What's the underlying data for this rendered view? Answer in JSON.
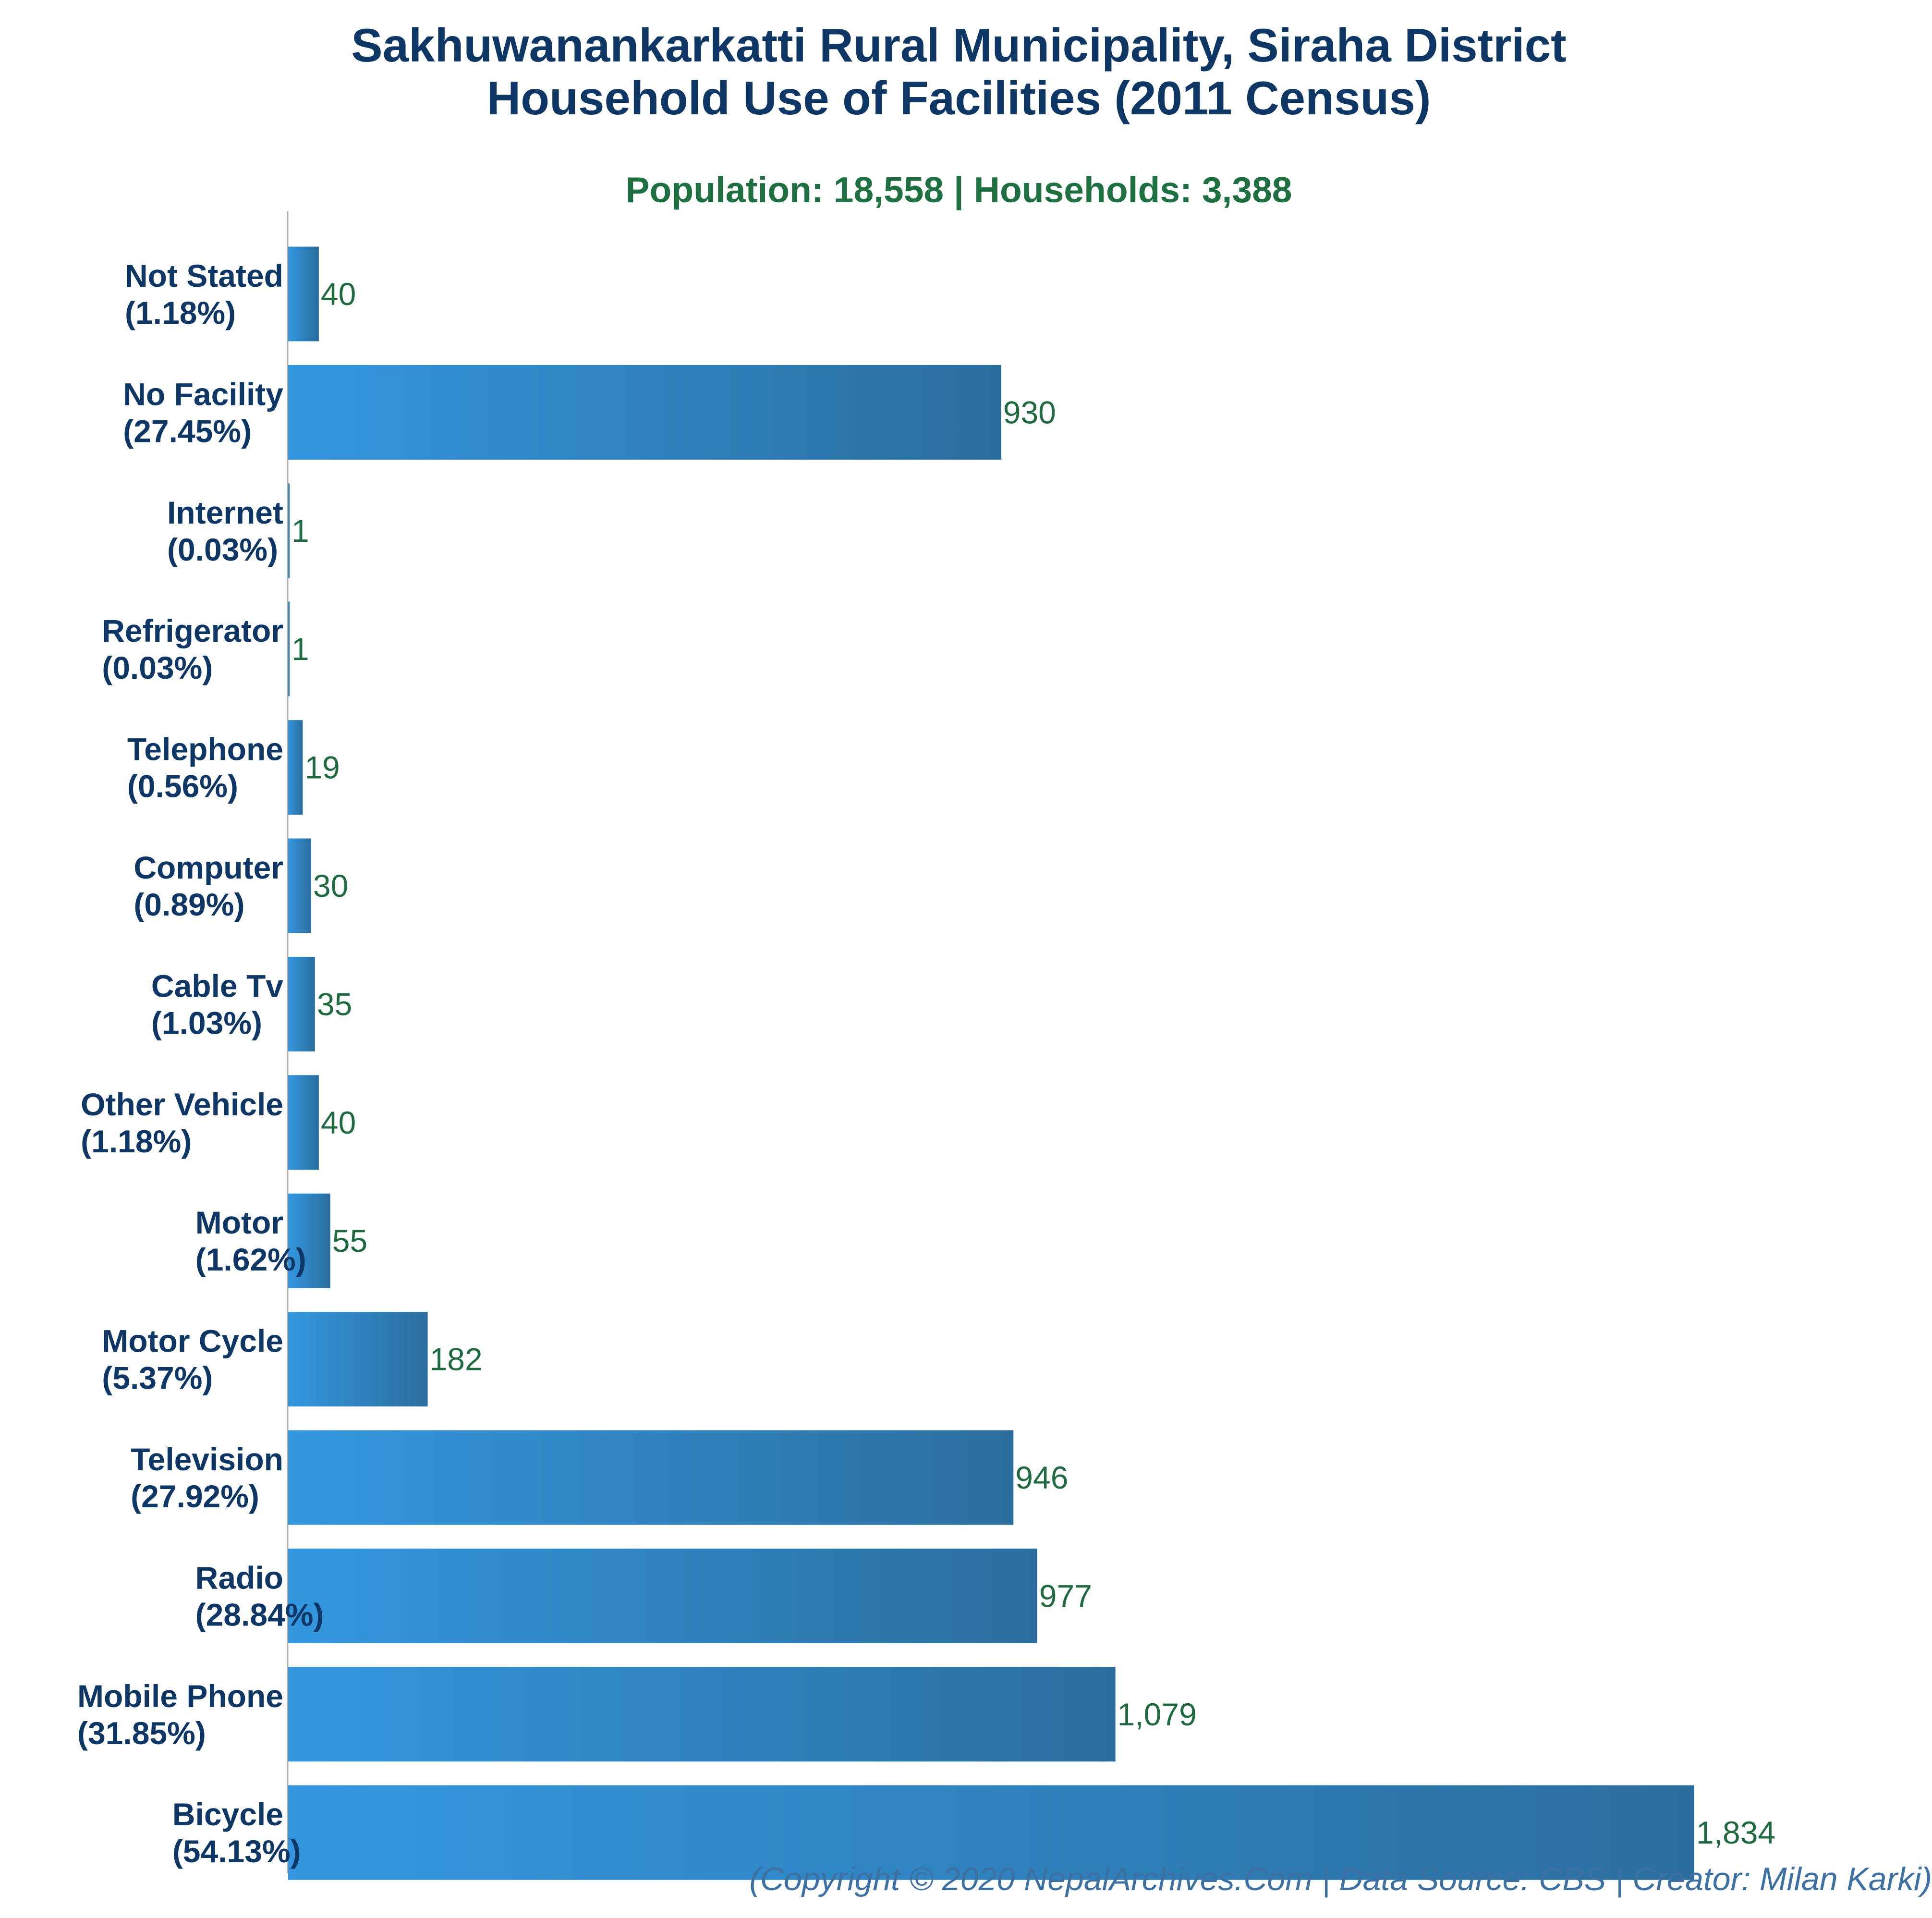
{
  "title_line1": "Sakhuwanankarkatti Rural Municipality, Siraha District",
  "title_line2": "Household Use of Facilities (2011 Census)",
  "subtitle": "Population: 18,558 | Households: 3,388",
  "footer": "(Copyright © 2020 NepalArchives.Com | Data Source: CBS | Creator: Milan Karki)",
  "colors": {
    "title": "#0e3766",
    "subtitle": "#1f7040",
    "bar_light": "#3497df",
    "bar_dark": "#2b6e9e",
    "value_label": "#1f6b3f",
    "footer": "#3d71a3",
    "axis": "#b0b0b0"
  },
  "chart_data": {
    "type": "bar",
    "orientation": "horizontal",
    "categories": [
      "Not Stated",
      "No Facility",
      "Internet",
      "Refrigerator",
      "Telephone",
      "Computer",
      "Cable Tv",
      "Other Vehicle",
      "Motor",
      "Motor Cycle",
      "Television",
      "Radio",
      "Mobile Phone",
      "Bicycle"
    ],
    "percent_labels": [
      "(1.18%)",
      "(27.45%)",
      "(0.03%)",
      "(0.03%)",
      "(0.56%)",
      "(0.89%)",
      "(1.03%)",
      "(1.18%)",
      "(1.62%)",
      "(5.37%)",
      "(27.92%)",
      "(28.84%)",
      "(31.85%)",
      "(54.13%)"
    ],
    "values": [
      40,
      930,
      1,
      1,
      19,
      30,
      35,
      40,
      55,
      182,
      946,
      977,
      1079,
      1834
    ],
    "value_labels": [
      "40",
      "930",
      "1",
      "1",
      "19",
      "30",
      "35",
      "40",
      "55",
      "182",
      "946",
      "977",
      "1,079",
      "1,834"
    ],
    "xlim": [
      0,
      1834
    ],
    "grid": false,
    "legend": "none"
  }
}
